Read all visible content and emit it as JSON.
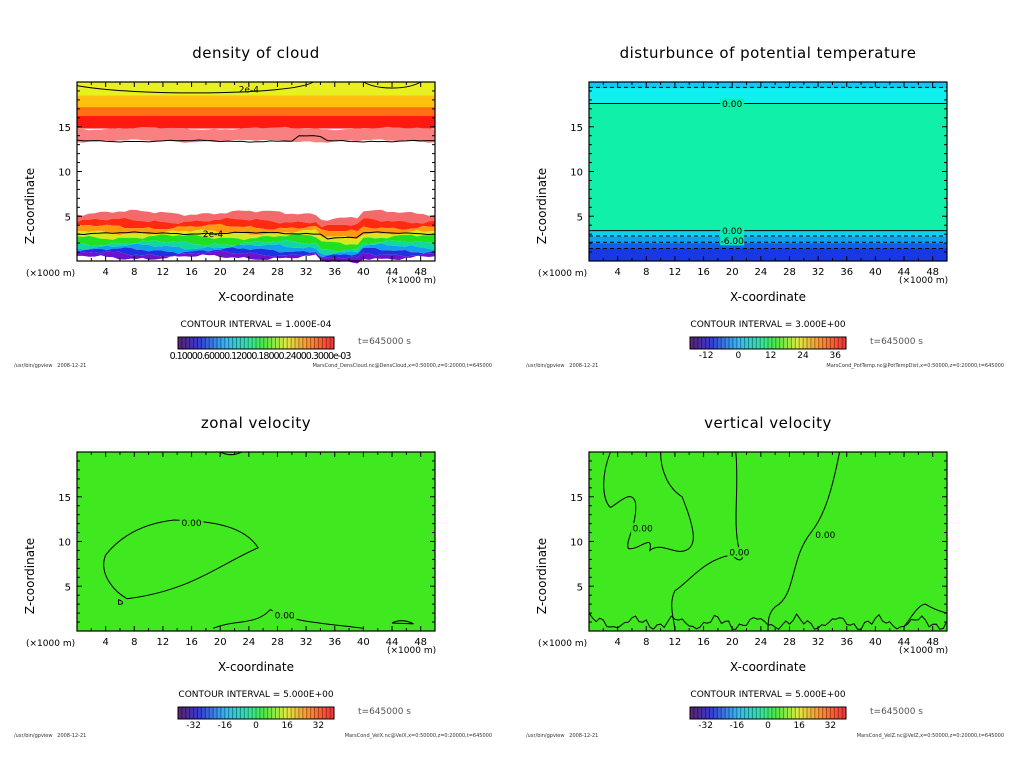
{
  "footer": {
    "program": "/usr/bin/gpview",
    "date": "2008-12-21"
  },
  "chart_data": [
    {
      "type": "heatmap",
      "title": "density of cloud",
      "xlabel": "X-coordinate",
      "ylabel": "Z-coordinate",
      "x_unit": "(×1000 m)",
      "y_unit": "(×1000 m)",
      "xlim": [
        0,
        50
      ],
      "ylim": [
        0,
        20
      ],
      "x_ticks": [
        "4",
        "8",
        "12",
        "16",
        "20",
        "24",
        "28",
        "32",
        "36",
        "40",
        "44",
        "48"
      ],
      "y_ticks": [
        "5",
        "10",
        "15"
      ],
      "contour_interval": "CONTOUR INTERVAL = 1.000E-04",
      "contour_labels": [
        "2e-4",
        "2e-4"
      ],
      "time": "t=645000 s",
      "colorbar_labels_text": "0.10000.60000.12000.18000.24000.3000e-03",
      "colorbar_ticks": [],
      "source": "MarsCond_DensCloud.nc@DensCloud,x=0:50000,z=0:20000,t=645000",
      "bands": [
        {
          "z_top": 20,
          "z_bottom": 18.5,
          "color": "#e8f020"
        },
        {
          "z_top": 18.5,
          "z_bottom": 17.2,
          "color": "#ffc010"
        },
        {
          "z_top": 17.2,
          "z_bottom": 16.2,
          "color": "#ff7010"
        },
        {
          "z_top": 16.2,
          "z_bottom": 14.8,
          "color": "#ff1a10"
        },
        {
          "z_top": 14.8,
          "z_bottom": 13.4,
          "color": "#f88080"
        },
        {
          "z_top": 5.4,
          "z_bottom": 4.5,
          "color": "#f46a6a"
        },
        {
          "z_top": 4.5,
          "z_bottom": 3.8,
          "color": "#ff2a10"
        },
        {
          "z_top": 3.8,
          "z_bottom": 3.2,
          "color": "#ff9a10"
        },
        {
          "z_top": 3.2,
          "z_bottom": 2.7,
          "color": "#d8e820"
        },
        {
          "z_top": 2.7,
          "z_bottom": 2.0,
          "color": "#20e020"
        },
        {
          "z_top": 2.0,
          "z_bottom": 1.6,
          "color": "#10d8a0"
        },
        {
          "z_top": 1.6,
          "z_bottom": 1.2,
          "color": "#10a0f0"
        },
        {
          "z_top": 1.2,
          "z_bottom": 0.8,
          "color": "#2030e0"
        },
        {
          "z_top": 0.8,
          "z_bottom": 0.4,
          "color": "#7010d0"
        }
      ],
      "background": "#ffffff"
    },
    {
      "type": "heatmap",
      "title": "disturbunce of potential temperature",
      "xlabel": "X-coordinate",
      "ylabel": "Z-coordinate",
      "x_unit": "(×1000 m)",
      "y_unit": "(×1000 m)",
      "xlim": [
        0,
        50
      ],
      "ylim": [
        0,
        20
      ],
      "x_ticks": [
        "4",
        "8",
        "12",
        "16",
        "20",
        "24",
        "28",
        "32",
        "36",
        "40",
        "44",
        "48"
      ],
      "y_ticks": [
        "5",
        "10",
        "15"
      ],
      "contour_interval": "CONTOUR INTERVAL = 3.000E+00",
      "contour_labels": [
        "0.00",
        "0.00",
        "-6.00"
      ],
      "time": "t=645000 s",
      "colorbar_ticks": [
        "-12",
        "0",
        "12",
        "24",
        "36"
      ],
      "colorbar_range": [
        -18,
        40
      ],
      "source": "MarsCond_PotTemp.nc@PotTempDist,x=0:50000,z=0:20000,t=645000",
      "bands": [
        {
          "z_top": 20,
          "z_bottom": 19.3,
          "color": "#10c8f8"
        },
        {
          "z_top": 19.3,
          "z_bottom": 17.6,
          "color": "#10f0f0"
        },
        {
          "z_top": 17.6,
          "z_bottom": 3.4,
          "color": "#10f0a8"
        },
        {
          "z_top": 3.4,
          "z_bottom": 2.7,
          "color": "#10d0f0"
        },
        {
          "z_top": 2.7,
          "z_bottom": 2.0,
          "color": "#10a0f0"
        },
        {
          "z_top": 2.0,
          "z_bottom": 1.4,
          "color": "#1060f0"
        },
        {
          "z_top": 1.4,
          "z_bottom": 0,
          "color": "#1838e8"
        }
      ],
      "background": "#10f0a8"
    },
    {
      "type": "heatmap",
      "title": "zonal velocity",
      "xlabel": "X-coordinate",
      "ylabel": "Z-coordinate",
      "x_unit": "(×1000 m)",
      "y_unit": "(×1000 m)",
      "xlim": [
        0,
        50
      ],
      "ylim": [
        0,
        20
      ],
      "x_ticks": [
        "4",
        "8",
        "12",
        "16",
        "20",
        "24",
        "28",
        "32",
        "36",
        "40",
        "44",
        "48"
      ],
      "y_ticks": [
        "5",
        "10",
        "15"
      ],
      "contour_interval": "CONTOUR INTERVAL = 5.000E+00",
      "contour_labels": [
        "0.00",
        "0.00"
      ],
      "time": "t=645000 s",
      "colorbar_ticks": [
        "-32",
        "-16",
        "0",
        "16",
        "32"
      ],
      "colorbar_range": [
        -40,
        40
      ],
      "source": "MarsCond_VelX.nc@VelX,x=0:50000,z=0:20000,t=645000",
      "bands": [],
      "background": "#40e820"
    },
    {
      "type": "heatmap",
      "title": "vertical velocity",
      "xlabel": "X-coordinate",
      "ylabel": "Z-coordinate",
      "x_unit": "(×1000 m)",
      "y_unit": "(×1000 m)",
      "xlim": [
        0,
        50
      ],
      "ylim": [
        0,
        20
      ],
      "x_ticks": [
        "4",
        "8",
        "12",
        "16",
        "20",
        "24",
        "28",
        "32",
        "36",
        "40",
        "44",
        "48"
      ],
      "y_ticks": [
        "5",
        "10",
        "15"
      ],
      "contour_interval": "CONTOUR INTERVAL = 5.000E+00",
      "contour_labels": [
        "0.00",
        "0.00",
        "0.00"
      ],
      "time": "t=645000 s",
      "colorbar_ticks": [
        "-32",
        "-16",
        "0",
        "16",
        "32"
      ],
      "colorbar_range": [
        -40,
        40
      ],
      "source": "MarsCond_VelZ.nc@VelZ,x=0:50000,z=0:20000,t=645000",
      "bands": [],
      "background": "#40e820"
    }
  ]
}
